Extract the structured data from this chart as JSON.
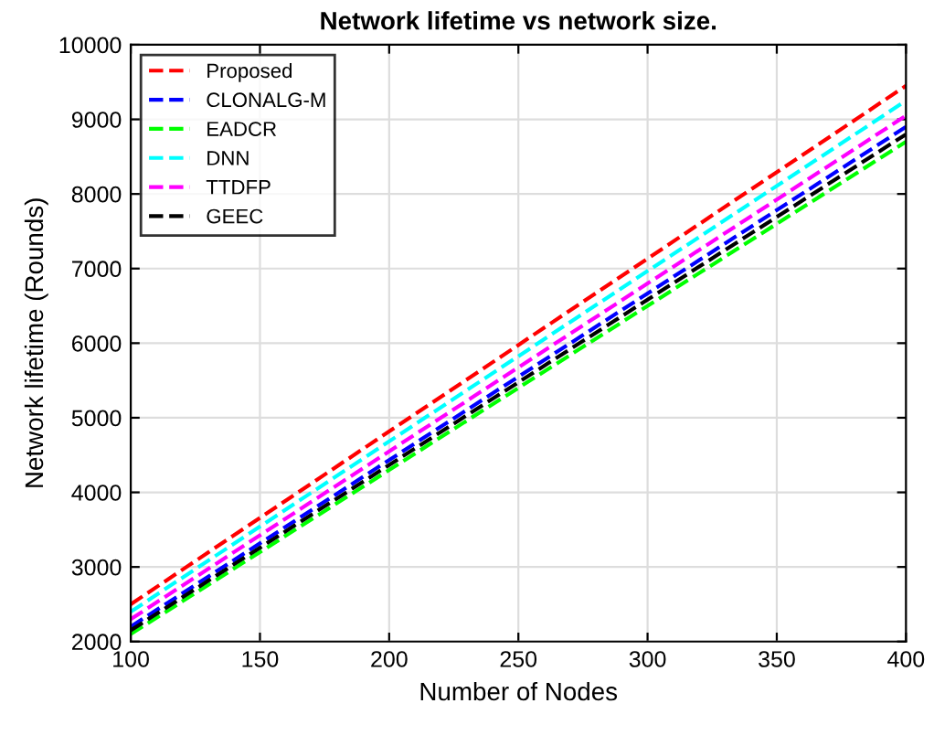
{
  "chart_data": {
    "type": "line",
    "title": "Network lifetime vs network size.",
    "xlabel": "Number of Nodes",
    "ylabel": "Network lifetime (Rounds)",
    "x": [
      100,
      400
    ],
    "series": [
      {
        "name": "Proposed",
        "color": "#ff0000",
        "values": [
          2500,
          9450
        ]
      },
      {
        "name": "CLONALG-M",
        "color": "#0000ff",
        "values": [
          2200,
          8900
        ]
      },
      {
        "name": "EADCR",
        "color": "#00ff00",
        "values": [
          2100,
          8700
        ]
      },
      {
        "name": "DNN",
        "color": "#00ffff",
        "values": [
          2400,
          9250
        ]
      },
      {
        "name": "TTDFP",
        "color": "#ff00ff",
        "values": [
          2300,
          9050
        ]
      },
      {
        "name": "GEEC",
        "color": "#000000",
        "values": [
          2150,
          8800
        ]
      }
    ],
    "xlim": [
      100,
      400
    ],
    "xticks": [
      100,
      150,
      200,
      250,
      300,
      350,
      400
    ],
    "ylim": [
      2000,
      10000
    ],
    "yticks": [
      2000,
      3000,
      4000,
      5000,
      6000,
      7000,
      8000,
      9000,
      10000
    ],
    "grid": true,
    "legend": "top left",
    "line_style": "dashed",
    "marker": "none"
  }
}
